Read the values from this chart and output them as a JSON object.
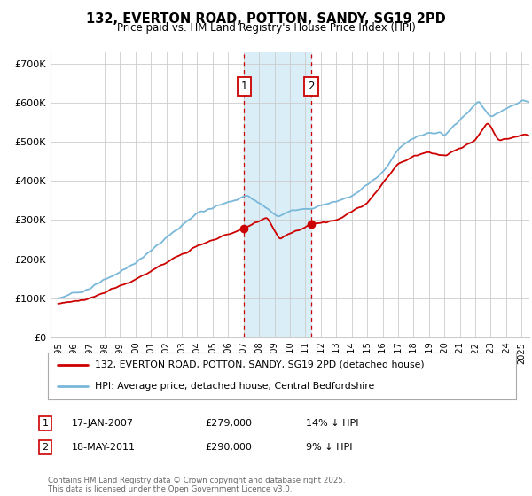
{
  "title": "132, EVERTON ROAD, POTTON, SANDY, SG19 2PD",
  "subtitle": "Price paid vs. HM Land Registry's House Price Index (HPI)",
  "legend_line1": "132, EVERTON ROAD, POTTON, SANDY, SG19 2PD (detached house)",
  "legend_line2": "HPI: Average price, detached house, Central Bedfordshire",
  "footnote": "Contains HM Land Registry data © Crown copyright and database right 2025.\nThis data is licensed under the Open Government Licence v3.0.",
  "sale1_label": "1",
  "sale1_date": "17-JAN-2007",
  "sale1_price": "£279,000",
  "sale1_pct": "14% ↓ HPI",
  "sale2_label": "2",
  "sale2_date": "18-MAY-2011",
  "sale2_price": "£290,000",
  "sale2_pct": "9% ↓ HPI",
  "sale1_year": 2007.04,
  "sale2_year": 2011.38,
  "sale1_value": 279000,
  "sale2_value": 290000,
  "hpi_color": "#7ab8d9",
  "price_color": "#cc0000",
  "shade_color": "#daeef8",
  "grid_color": "#cccccc",
  "background_color": "#ffffff",
  "ylim": [
    0,
    730000
  ],
  "xlim_start": 1994.5,
  "xlim_end": 2025.5
}
